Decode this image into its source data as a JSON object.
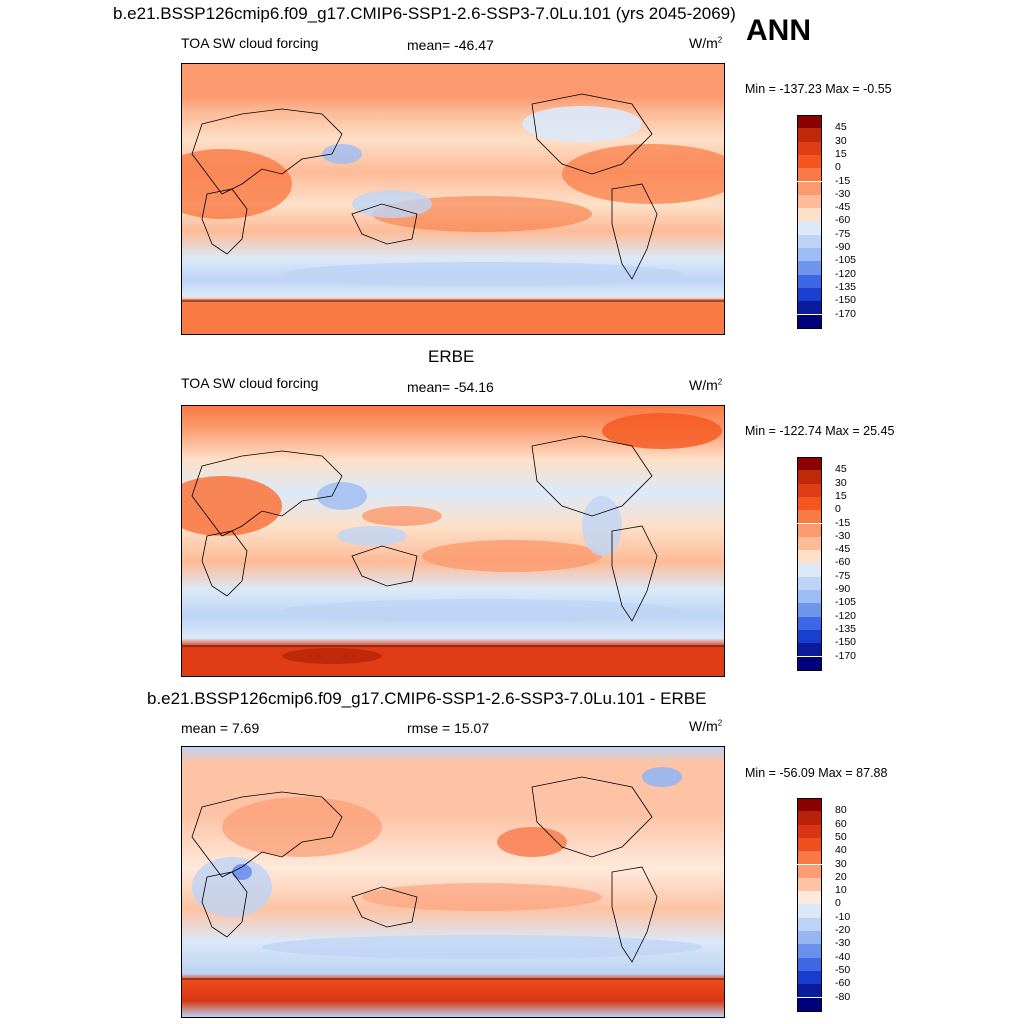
{
  "header": {
    "case_title": "b.e21.BSSP126cmip6.f09_g17.CMIP6-SSP1-2.6-SSP3-7.0Lu.101 (yrs 2045-2069)",
    "season": "ANN"
  },
  "panels": [
    {
      "id": "model",
      "variable": "TOA SW cloud forcing",
      "stat1": "mean= -46.47",
      "stat2": "",
      "units": "W/m",
      "units_sup": "2",
      "minmax": "Min = -137.23 Max =  -0.55",
      "colorbar_labels": [
        "45",
        "30",
        "15",
        "0",
        "-15",
        "-30",
        "-45",
        "-60",
        "-75",
        "-90",
        "-105",
        "-120",
        "-135",
        "-150",
        "-170"
      ],
      "colorbar_colors": [
        "#8b0000",
        "#c0280a",
        "#e03c16",
        "#f5561d",
        "#f97a45",
        "#fb9a6e",
        "#fdbb98",
        "#fde0c8",
        "#dce9f8",
        "#bed4f6",
        "#9dbcf3",
        "#6f95ec",
        "#3c66e4",
        "#1a3fcf",
        "#0a1c9c",
        "#00007a"
      ]
    },
    {
      "id": "obs",
      "title": "ERBE",
      "variable": "TOA SW cloud forcing",
      "stat1": "mean= -54.16",
      "stat2": "",
      "units": "W/m",
      "units_sup": "2",
      "minmax": "Min = -122.74 Max =  25.45",
      "colorbar_labels": [
        "45",
        "30",
        "15",
        "0",
        "-15",
        "-30",
        "-45",
        "-60",
        "-75",
        "-90",
        "-105",
        "-120",
        "-135",
        "-150",
        "-170"
      ],
      "colorbar_colors": [
        "#8b0000",
        "#c0280a",
        "#e03c16",
        "#f5561d",
        "#f97a45",
        "#fb9a6e",
        "#fdbb98",
        "#fde0c8",
        "#dce9f8",
        "#bed4f6",
        "#9dbcf3",
        "#6f95ec",
        "#3c66e4",
        "#1a3fcf",
        "#0a1c9c",
        "#00007a"
      ]
    },
    {
      "id": "diff",
      "title": "b.e21.BSSP126cmip6.f09_g17.CMIP6-SSP1-2.6-SSP3-7.0Lu.101 - ERBE",
      "variable": "",
      "stat1": "mean =   7.69",
      "stat2": "rmse =  15.07",
      "units": "W/m",
      "units_sup": "2",
      "minmax": "Min = -56.09 Max =  87.88",
      "colorbar_labels": [
        "80",
        "60",
        "50",
        "40",
        "30",
        "20",
        "10",
        "0",
        "-10",
        "-20",
        "-30",
        "-40",
        "-50",
        "-60",
        "-80"
      ],
      "colorbar_colors": [
        "#8b0000",
        "#b8200a",
        "#d83512",
        "#f04e1c",
        "#f97848",
        "#fb9c74",
        "#fdc3a4",
        "#feeadc",
        "#dbe8f8",
        "#bcd3f5",
        "#96b6f1",
        "#6a90eb",
        "#3e67e2",
        "#1a3ccc",
        "#0a1c9c",
        "#00007a"
      ]
    }
  ]
}
